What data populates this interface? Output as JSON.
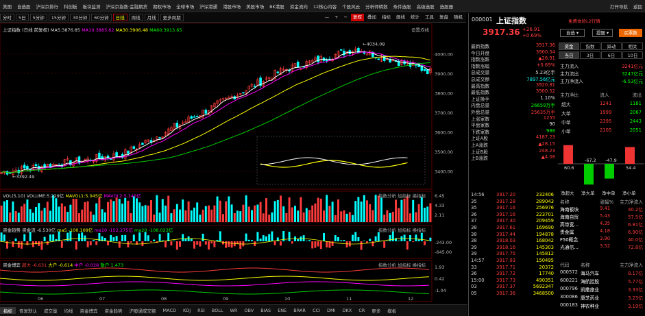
{
  "topnav": [
    "美图",
    "自选股",
    "沪深京排行",
    "科创板",
    "板块监测",
    "沪深京指数·金融期货",
    "期权市场",
    "全球市场",
    "沪深港通",
    "港股市场",
    "美股市场",
    "BK港股",
    "资金流向",
    "12核心内容",
    "个股风云",
    "分析师精数",
    "条件选股",
    "高级选股",
    "选股器",
    "打开导航",
    "返回"
  ],
  "periods": [
    "分时",
    "5日",
    "5分钟",
    "15分钟",
    "30分钟",
    "60分钟",
    "日线",
    "周线",
    "月线",
    "更多周期"
  ],
  "period_active": "日线",
  "controls": [
    "—",
    "+",
    "−",
    "复权",
    "叠加",
    "指标",
    "画线",
    "统计",
    "工具",
    "复盘",
    "随机"
  ],
  "main_legend": {
    "name": "上证指数",
    "mode": "(日线 前复权)",
    "ma5": "MA5:3876.85",
    "ma10": "MA10:3885.62",
    "ma30": "MA30:3906.48",
    "ma60": "MA60:3913.65",
    "settings": "设置均线"
  },
  "price_axis": [
    "4000.00",
    "3900.00",
    "3800.00",
    "3700.00",
    "3600.00",
    "3500.00",
    "3400.00"
  ],
  "annot_high": "4034.08",
  "annot_low": "3392.49",
  "vol_legend": {
    "name": "VOL(5,10)",
    "volume": "VOLUME:5.229亿",
    "mavol1": "MAVOL1:5.045亿",
    "mavol2": "MAVOL2:5.145亿",
    "buttons": [
      "指数分析",
      "加指标",
      "换指标"
    ]
  },
  "vol_axis": [
    "6.45",
    "4.33",
    "2.11"
  ],
  "fund_legend": {
    "name": "资金趋势",
    "flow": "资金流 -6.530亿",
    "ma5": "ma5 -100.109亿",
    "ma10": "ma10 -152.275亿",
    "ma20": "ma20 -108.023亿",
    "buttons": [
      "指数分析",
      "加指标",
      "换指标"
    ]
  },
  "fund_axis": [
    "-243.00",
    "-645.00"
  ],
  "game_legend": {
    "name": "资金博弈",
    "super": "超大 -6.631",
    "big": "大户 -0.614",
    "mid": "中户 -0.028",
    "retail": "散户 1.473",
    "buttons": [
      "指数分析",
      "加指标",
      "换指标"
    ]
  },
  "game_axis": [
    "1.93",
    "0.42",
    "-1.04"
  ],
  "xaxis": [
    "06",
    "07",
    "08",
    "09",
    "10",
    "11",
    "12"
  ],
  "bottomtabs": [
    "指标",
    "恢复默认",
    "成交量",
    "均线",
    "资金博弈",
    "资金趋势",
    "沪股通成交额",
    "MACD",
    "KDJ",
    "RSI",
    "BOLL",
    "WR",
    "OBV",
    "BIAS",
    "ENE",
    "BRAR",
    "CCI",
    "DMI",
    "DKX",
    "CR",
    "更多",
    "模板"
  ],
  "bottom_active": "指标",
  "stock": {
    "code": "000001",
    "name": "上证指数",
    "price": "3917.36",
    "change": "+26.91",
    "pct": "+0.69%",
    "free_tag": "免费体验L2行情",
    "btn_watch": "自选",
    "btn_alert": "提醒",
    "btn_buy": "买票数"
  },
  "quote": [
    [
      "最新指数",
      "3917.36",
      "red"
    ],
    [
      "今日开盘",
      "3900.54",
      "red"
    ],
    [
      "指数涨跌",
      "▲26.91",
      "red"
    ],
    [
      "指数涨幅",
      "+0.69%",
      "red"
    ],
    [
      "总成交量",
      "5.23亿手",
      "wht"
    ],
    [
      "总成交额",
      "7897.56亿元",
      "cyan"
    ],
    [
      "最高指数",
      "3920.81",
      "red"
    ],
    [
      "最低指数",
      "3900.52",
      "red"
    ],
    [
      "上证换手",
      "1.10%",
      "wht"
    ],
    [
      "内盘总量",
      "26659万手",
      "grn"
    ],
    [
      "外盘总量",
      "25635万手",
      "red"
    ],
    [
      "上涨家数",
      "1255",
      "red"
    ],
    [
      "平盘家数",
      "90",
      "wht"
    ],
    [
      "下跌家数",
      "988",
      "grn"
    ],
    [
      "上证A股",
      "4187.23",
      "red"
    ],
    [
      "上A涨跌",
      "▲28.15",
      "red"
    ],
    [
      "上证B股",
      "248.23",
      "red"
    ],
    [
      "上B涨跌",
      "▲4.08",
      "red"
    ]
  ],
  "fund_tabs": [
    "资金",
    "指数",
    "异动",
    "相关"
  ],
  "fund_subtabs": [
    "当日",
    "3日",
    "6日",
    "10日"
  ],
  "fund_flows": [
    [
      "主力流入",
      "3241亿元",
      "red"
    ],
    [
      "主力流出",
      "3247亿元",
      "grn"
    ],
    [
      "主力净流入",
      "-6.53亿元",
      "grn"
    ]
  ],
  "fund_table_head": [
    "主力净比",
    "流入",
    "流出"
  ],
  "fund_table": [
    [
      "超大",
      "1241",
      "1181"
    ],
    [
      "大单",
      "1999",
      "2067"
    ],
    [
      "中单",
      "2395",
      "2443"
    ],
    [
      "小单",
      "2105",
      "2051"
    ]
  ],
  "fund_bars": [
    {
      "label": "净超大",
      "value": 60.6
    },
    {
      "label": "净大单",
      "value": -67.2
    },
    {
      "label": "净中单",
      "value": -47.9
    },
    {
      "label": "净小单",
      "value": 54.4
    }
  ],
  "ticks": [
    [
      "14:56",
      "3917.20",
      "232406"
    ],
    [
      "35",
      "3917.28",
      "289043"
    ],
    [
      "35",
      "3917.16",
      "256976"
    ],
    [
      "36",
      "3917.16",
      "223701"
    ],
    [
      "37",
      "3917.40",
      "209459"
    ],
    [
      "38",
      "3917.61",
      "169690"
    ],
    [
      "38",
      "3917.44",
      "194878"
    ],
    [
      "38",
      "3918.03",
      "168042"
    ],
    [
      "39",
      "3918.16",
      "145303"
    ],
    [
      "39",
      "3917.75",
      "145812"
    ],
    [
      "14:57",
      "3917.93",
      "150495"
    ],
    [
      "33",
      "3917.71",
      "20372"
    ],
    [
      "36",
      "3917.72",
      "17740"
    ],
    [
      "15:00",
      "3917.73",
      "490351"
    ],
    [
      "03",
      "3917.37",
      "5692347"
    ],
    [
      "05",
      "3917.36",
      "3468500"
    ]
  ],
  "sector_head": [
    "名称",
    "涨幅%",
    "主力净流入"
  ],
  "sectors": [
    [
      "海南板块",
      "9.41",
      "40.2亿"
    ],
    [
      "海南自贸",
      "5.43",
      "57.5亿"
    ],
    [
      "高带宽...",
      "4.35",
      "6.81亿"
    ],
    [
      "贵金属",
      "4.18",
      "6.90亿"
    ],
    [
      "F50概念",
      "3.90",
      "40.0亿"
    ],
    [
      "光通信...",
      "3.52",
      "72.8亿"
    ]
  ],
  "stocks_head": [
    "代码",
    "名称",
    "主力净流入"
  ],
  "stocks": [
    [
      "000572",
      "海马汽车",
      "8.17亿"
    ],
    [
      "600221",
      "海航控股",
      "5.77亿"
    ],
    [
      "000796",
      "凯撒旅业",
      "3.33亿"
    ],
    [
      "300086",
      "康芝药业",
      "3.23亿"
    ],
    [
      "000183",
      "神农种业",
      "3.19亿"
    ]
  ]
}
